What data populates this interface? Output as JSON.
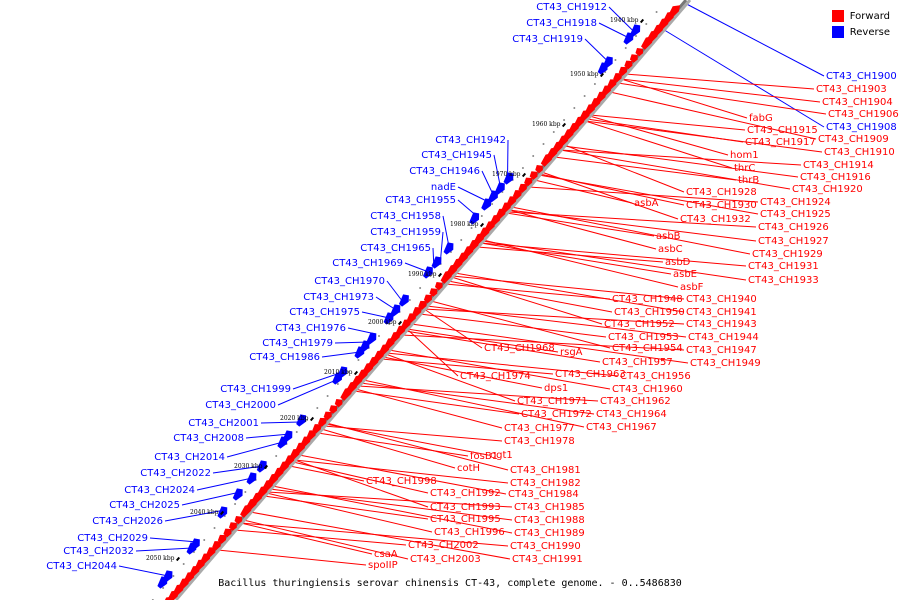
{
  "title": "Bacillus thuringiensis serovar chinensis CT-43, complete genome. - 0..5486830",
  "legend": {
    "forward_label": "Forward",
    "reverse_label": "Reverse",
    "forward_color": "#ff0000",
    "reverse_color": "#0000ff"
  },
  "colors": {
    "backbone": "#777777",
    "shadow": "#aaaaaa",
    "tick_mark": "#000000"
  },
  "ticks": [
    "1940 kbp",
    "1950 kbp",
    "1960 kbp",
    "1970 kbp",
    "1980 kbp",
    "1990 kbp",
    "2000 kbp",
    "2010 kbp",
    "2020 kbp",
    "2030 kbp",
    "2040 kbp",
    "2050 kbp"
  ],
  "reverse_genes": [
    "CT43_CH1912",
    "CT43_CH1918",
    "CT43_CH1919",
    "CT43_CH1942",
    "CT43_CH1945",
    "CT43_CH1946",
    "nadE",
    "CT43_CH1955",
    "CT43_CH1958",
    "CT43_CH1959",
    "CT43_CH1965",
    "CT43_CH1969",
    "CT43_CH1970",
    "CT43_CH1973",
    "CT43_CH1975",
    "CT43_CH1976",
    "CT43_CH1979",
    "CT43_CH1986",
    "CT43_CH1999",
    "CT43_CH2000",
    "CT43_CH2001",
    "CT43_CH2008",
    "CT43_CH2014",
    "CT43_CH2022",
    "CT43_CH2024",
    "CT43_CH2025",
    "CT43_CH2026",
    "CT43_CH2029",
    "CT43_CH2032",
    "CT43_CH2044"
  ],
  "reverse_genes_right": [
    "CT43_CH1900",
    "CT43_CH1908"
  ],
  "forward_genes": [
    "CT43_CH1903",
    "CT43_CH1904",
    "CT43_CH1906",
    "fabG",
    "CT43_CH1909",
    "CT43_CH1915",
    "CT43_CH1917",
    "CT43_CH1910",
    "hom1",
    "thrC",
    "CT43_CH1914",
    "thrB",
    "CT43_CH1916",
    "CT43_CH1920",
    "CT43_CH1928",
    "CT43_CH1924",
    "asbA",
    "CT43_CH1930",
    "CT43_CH1925",
    "CT43_CH1932",
    "CT43_CH1926",
    "asbB",
    "CT43_CH1927",
    "asbC",
    "CT43_CH1929",
    "asbD",
    "CT43_CH1931",
    "asbE",
    "CT43_CH1933",
    "asbF",
    "CT43_CH1948",
    "CT43_CH1940",
    "CT43_CH1950",
    "CT43_CH1941",
    "CT43_CH1952",
    "CT43_CH1943",
    "CT43_CH1953",
    "CT43_CH1944",
    "CT43_CH1968",
    "CT43_CH1954",
    "CT43_CH1947",
    "rsgA",
    "CT43_CH1957",
    "CT43_CH1949",
    "CT43_CH1974",
    "CT43_CH1963",
    "CT43_CH1956",
    "dps1",
    "CT43_CH1960",
    "CT43_CH1971",
    "CT43_CH1962",
    "CT43_CH1972",
    "CT43_CH1964",
    "CT43_CH1977",
    "CT43_CH1967",
    "CT43_CH1978",
    "fosB1",
    "ogt1",
    "cotH",
    "CT43_CH1981",
    "CT43_CH1998",
    "CT43_CH1982",
    "CT43_CH1992",
    "CT43_CH1984",
    "CT43_CH1993",
    "CT43_CH1985",
    "CT43_CH1995",
    "CT43_CH1988",
    "CT43_CH1996",
    "CT43_CH1989",
    "CT43_CH2002",
    "CT43_CH1990",
    "csaA",
    "CT43_CH2003",
    "CT43_CH1991",
    "spoIIP"
  ]
}
